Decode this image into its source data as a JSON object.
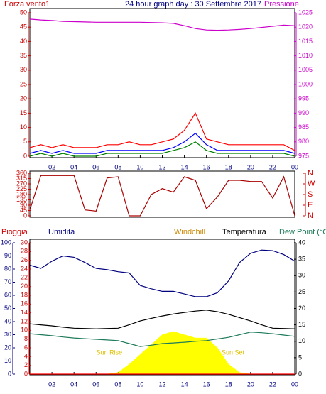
{
  "chart_data": [
    {
      "type": "line",
      "title": "24 hour graph day : 30 Settembre 2017",
      "x": [
        0,
        1,
        2,
        3,
        4,
        5,
        6,
        7,
        8,
        9,
        10,
        11,
        12,
        13,
        14,
        15,
        16,
        17,
        18,
        19,
        20,
        21,
        22,
        23,
        24
      ],
      "xlim": [
        0,
        24
      ],
      "xticks": [
        {
          "value": 2,
          "label": "02"
        },
        {
          "value": 4,
          "label": "04"
        },
        {
          "value": 6,
          "label": "06"
        },
        {
          "value": 8,
          "label": "08"
        },
        10,
        12,
        14,
        16,
        18,
        20,
        22,
        {
          "value": 24,
          "label": "00"
        }
      ],
      "ylim": [
        0,
        50
      ],
      "yticks": [
        0,
        5,
        10,
        15,
        20,
        25,
        30,
        35,
        40,
        45,
        50
      ],
      "ycolor": "#cc0000",
      "y2lim": [
        975,
        1025
      ],
      "y2ticks": [
        975,
        980,
        985,
        990,
        995,
        1000,
        1005,
        1010,
        1015,
        1020,
        1025
      ],
      "y2color": "#cc00cc",
      "series": [
        {
          "name": "Forza vento1",
          "color": "#ff0000",
          "values": [
            3,
            4,
            3,
            4,
            3,
            3,
            3,
            4,
            4,
            5,
            4,
            4,
            5,
            6,
            9,
            15,
            6,
            5,
            4,
            4,
            4,
            4,
            4,
            4,
            2
          ]
        },
        {
          "color": "#0000ff",
          "values": [
            1,
            2,
            1,
            2,
            1,
            1,
            1,
            2,
            2,
            2,
            2,
            2,
            2,
            3,
            5,
            8,
            4,
            2,
            2,
            2,
            2,
            2,
            2,
            2,
            1
          ]
        },
        {
          "color": "#008000",
          "values": [
            0,
            1,
            0,
            1,
            0,
            0,
            0,
            1,
            1,
            1,
            1,
            1,
            1,
            2,
            3,
            5,
            2,
            1,
            1,
            1,
            1,
            1,
            1,
            1,
            0
          ]
        },
        {
          "name": "Pressione",
          "color": "#cc00cc",
          "axis": "y2",
          "values": [
            1022.8,
            1022.5,
            1022.3,
            1022.0,
            1021.9,
            1021.8,
            1021.7,
            1021.7,
            1021.7,
            1021.7,
            1021.7,
            1021.6,
            1021.5,
            1021.3,
            1020.5,
            1019.5,
            1019,
            1018.9,
            1019,
            1019.2,
            1019.5,
            1019.9,
            1020.3,
            1020.7,
            1020.5
          ]
        }
      ]
    },
    {
      "type": "line",
      "x": [
        0,
        1,
        2,
        3,
        4,
        5,
        6,
        7,
        8,
        9,
        10,
        11,
        12,
        13,
        14,
        15,
        16,
        17,
        18,
        19,
        20,
        21,
        22,
        23,
        24
      ],
      "xlim": [
        0,
        24
      ],
      "ylim": [
        0,
        360
      ],
      "yticks": [
        0,
        45,
        90,
        135,
        180,
        225,
        270,
        315,
        360
      ],
      "ycolor": "#cc0000",
      "y2lim": [
        0,
        360
      ],
      "y2ticks": [
        {
          "value": 360,
          "label": "N"
        },
        {
          "value": 270,
          "label": "W"
        },
        {
          "value": 180,
          "label": "S"
        },
        {
          "value": 90,
          "label": "E"
        },
        {
          "value": 0,
          "label": "N"
        }
      ],
      "y2color": "#cc0000",
      "series": [
        {
          "color": "#aa0000",
          "values": [
            50,
            340,
            340,
            340,
            340,
            50,
            40,
            320,
            330,
            0,
            0,
            180,
            230,
            200,
            330,
            300,
            60,
            160,
            300,
            300,
            290,
            290,
            150,
            330,
            0
          ]
        }
      ]
    },
    {
      "type": "line",
      "x": [
        0,
        1,
        2,
        3,
        4,
        5,
        6,
        7,
        8,
        9,
        10,
        11,
        12,
        13,
        14,
        15,
        16,
        17,
        18,
        19,
        20,
        21,
        22,
        23,
        24
      ],
      "xlim": [
        0,
        24
      ],
      "xticks": [
        {
          "value": 2,
          "label": "02"
        },
        {
          "value": 4,
          "label": "04"
        },
        {
          "value": 6,
          "label": "06"
        },
        {
          "value": 8,
          "label": "08"
        },
        10,
        12,
        14,
        16,
        18,
        20,
        22,
        {
          "value": 24,
          "label": "00"
        }
      ],
      "ylim": [
        0,
        100
      ],
      "yticks": [
        0,
        10,
        20,
        30,
        40,
        50,
        60,
        70,
        80,
        90,
        100
      ],
      "ycolor": "#000080",
      "y3lim": [
        0,
        30
      ],
      "y3ticks": [
        0,
        2,
        4,
        6,
        8,
        10,
        12,
        14,
        16,
        18,
        20,
        22,
        24,
        26,
        28,
        30
      ],
      "y3color": "#cc0000",
      "y2lim": [
        0,
        40
      ],
      "y2ticks": [
        0,
        5,
        10,
        15,
        20,
        25,
        30,
        35,
        40
      ],
      "y2color": "#000000",
      "windchill_label": "Windchill",
      "annotations": [
        {
          "text": "Sun Rise",
          "x": 7.2
        },
        {
          "text": "Sun Set",
          "x": 18.4
        }
      ],
      "series": [
        {
          "color": "#ffff00",
          "axis": "y2",
          "area": true,
          "values": [
            0,
            0,
            0,
            0,
            0,
            0,
            0,
            0,
            0.5,
            3,
            6,
            9,
            12,
            13,
            12,
            11,
            11,
            8,
            3,
            0.5,
            0,
            0,
            0,
            0,
            0
          ]
        },
        {
          "name": "Umidita",
          "color": "#000080",
          "values": [
            83,
            80.5,
            86,
            90,
            89,
            85,
            80.5,
            79.5,
            78,
            77,
            67.5,
            65,
            63,
            63,
            61,
            59,
            59,
            62,
            71,
            85,
            92,
            94.5,
            94,
            91,
            86
          ]
        },
        {
          "name": "Temperatura",
          "color": "#000000",
          "axis": "y2",
          "values": [
            15.3,
            15,
            14.7,
            14.3,
            14,
            13.9,
            13.8,
            13.9,
            14,
            15,
            16.2,
            17,
            17.7,
            18.3,
            18.8,
            19.2,
            19.5,
            19,
            18.2,
            17.2,
            16.2,
            15,
            14,
            13.9,
            13.8
          ]
        },
        {
          "name": "Dew Point (°C",
          "color": "#1e7b5a",
          "axis": "y2",
          "values": [
            12.3,
            12,
            11.7,
            11.3,
            11,
            10.8,
            10.6,
            10.4,
            10.2,
            9.3,
            8.4,
            8.8,
            9.3,
            9.5,
            9.7,
            10,
            10.2,
            10.7,
            11.2,
            12,
            12.8,
            12.6,
            12.3,
            11.9,
            11.5
          ]
        },
        {
          "name": "Pioggia",
          "color": "#ff0000",
          "axis": "y3",
          "values": [
            0,
            0,
            0,
            0,
            0,
            0,
            0,
            0,
            0,
            0,
            0,
            0,
            0,
            0,
            0,
            0,
            0,
            0,
            0,
            0,
            0,
            0,
            0,
            0,
            0
          ]
        }
      ]
    }
  ]
}
